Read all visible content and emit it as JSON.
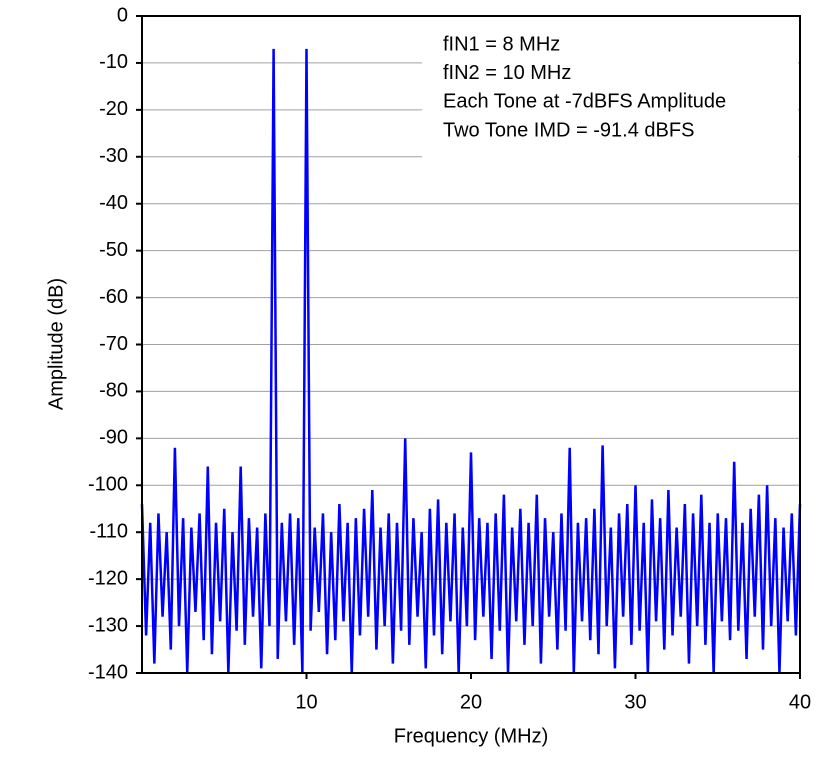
{
  "chart_data": {
    "type": "line",
    "xlabel": "Frequency (MHz)",
    "ylabel": "Amplitude (dB)",
    "annotations": [
      "fIN1 = 8 MHz",
      "fIN2 = 10 MHz",
      "Each Tone at -7dBFS Amplitude",
      "Two Tone IMD = -91.4 dBFS"
    ],
    "color": "#0000ff",
    "grid": true,
    "xlim": [
      0,
      40
    ],
    "xticks": [
      10,
      20,
      30,
      40
    ],
    "ylim": [
      -140,
      0
    ],
    "yticks": [
      0,
      -10,
      -20,
      -30,
      -40,
      -50,
      -60,
      -70,
      -80,
      -90,
      -100,
      -110,
      -120,
      -130,
      -140
    ],
    "x": [
      0,
      0.25,
      0.5,
      0.75,
      1,
      1.25,
      1.5,
      1.75,
      2,
      2.25,
      2.5,
      2.75,
      3,
      3.25,
      3.5,
      3.75,
      4,
      4.25,
      4.5,
      4.75,
      5,
      5.25,
      5.5,
      5.75,
      6,
      6.25,
      6.5,
      6.75,
      7,
      7.25,
      7.5,
      7.75,
      8,
      8.25,
      8.5,
      8.75,
      9,
      9.25,
      9.5,
      9.75,
      10,
      10.25,
      10.5,
      10.75,
      11,
      11.25,
      11.5,
      11.75,
      12,
      12.25,
      12.5,
      12.75,
      13,
      13.25,
      13.5,
      13.75,
      14,
      14.25,
      14.5,
      14.75,
      15,
      15.25,
      15.5,
      15.75,
      16,
      16.25,
      16.5,
      16.75,
      17,
      17.25,
      17.5,
      17.75,
      18,
      18.25,
      18.5,
      18.75,
      19,
      19.25,
      19.5,
      19.75,
      20,
      20.25,
      20.5,
      20.75,
      21,
      21.25,
      21.5,
      21.75,
      22,
      22.25,
      22.5,
      22.75,
      23,
      23.25,
      23.5,
      23.75,
      24,
      24.25,
      24.5,
      24.75,
      25,
      25.25,
      25.5,
      25.75,
      26,
      26.25,
      26.5,
      26.75,
      27,
      27.25,
      27.5,
      27.75,
      28,
      28.25,
      28.5,
      28.75,
      29,
      29.25,
      29.5,
      29.75,
      30,
      30.25,
      30.5,
      30.75,
      31,
      31.25,
      31.5,
      31.75,
      32,
      32.25,
      32.5,
      32.75,
      33,
      33.25,
      33.5,
      33.75,
      34,
      34.25,
      34.5,
      34.75,
      35,
      35.25,
      35.5,
      35.75,
      36,
      36.25,
      36.5,
      36.75,
      37,
      37.25,
      37.5,
      37.75,
      38,
      38.25,
      38.5,
      38.75,
      39,
      39.25,
      39.5,
      39.75,
      40
    ],
    "values": [
      -104,
      -132,
      -108,
      -138,
      -106,
      -128,
      -110,
      -135,
      -92,
      -130,
      -107,
      -140,
      -109,
      -127,
      -106,
      -133,
      -96,
      -136,
      -108,
      -129,
      -105,
      -140,
      -110,
      -131,
      -96,
      -134,
      -107,
      -128,
      -109,
      -139,
      -106,
      -130,
      -7,
      -137,
      -108,
      -129,
      -106,
      -134,
      -107,
      -140,
      -7,
      -131,
      -109,
      -127,
      -106,
      -136,
      -110,
      -133,
      -104,
      -129,
      -108,
      -140,
      -107,
      -132,
      -105,
      -128,
      -101,
      -135,
      -109,
      -130,
      -106,
      -138,
      -108,
      -131,
      -90,
      -134,
      -107,
      -128,
      -110,
      -139,
      -105,
      -132,
      -103,
      -136,
      -108,
      -129,
      -106,
      -140,
      -109,
      -130,
      -93,
      -133,
      -107,
      -128,
      -108,
      -137,
      -106,
      -131,
      -102,
      -140,
      -109,
      -129,
      -105,
      -134,
      -108,
      -130,
      -102,
      -138,
      -107,
      -128,
      -110,
      -135,
      -106,
      -131,
      -92,
      -140,
      -108,
      -129,
      -107,
      -133,
      -105,
      -136,
      -91.5,
      -130,
      -109,
      -139,
      -106,
      -128,
      -104,
      -134,
      -100,
      -131,
      -108,
      -140,
      -103,
      -129,
      -107,
      -135,
      -101,
      -132,
      -109,
      -128,
      -104,
      -138,
      -106,
      -130,
      -102,
      -134,
      -108,
      -140,
      -106,
      -129,
      -107,
      -133,
      -95,
      -131,
      -108,
      -137,
      -105,
      -128,
      -102,
      -135,
      -100,
      -130,
      -107,
      -140,
      -109,
      -129,
      -106,
      -132,
      -104
    ]
  }
}
